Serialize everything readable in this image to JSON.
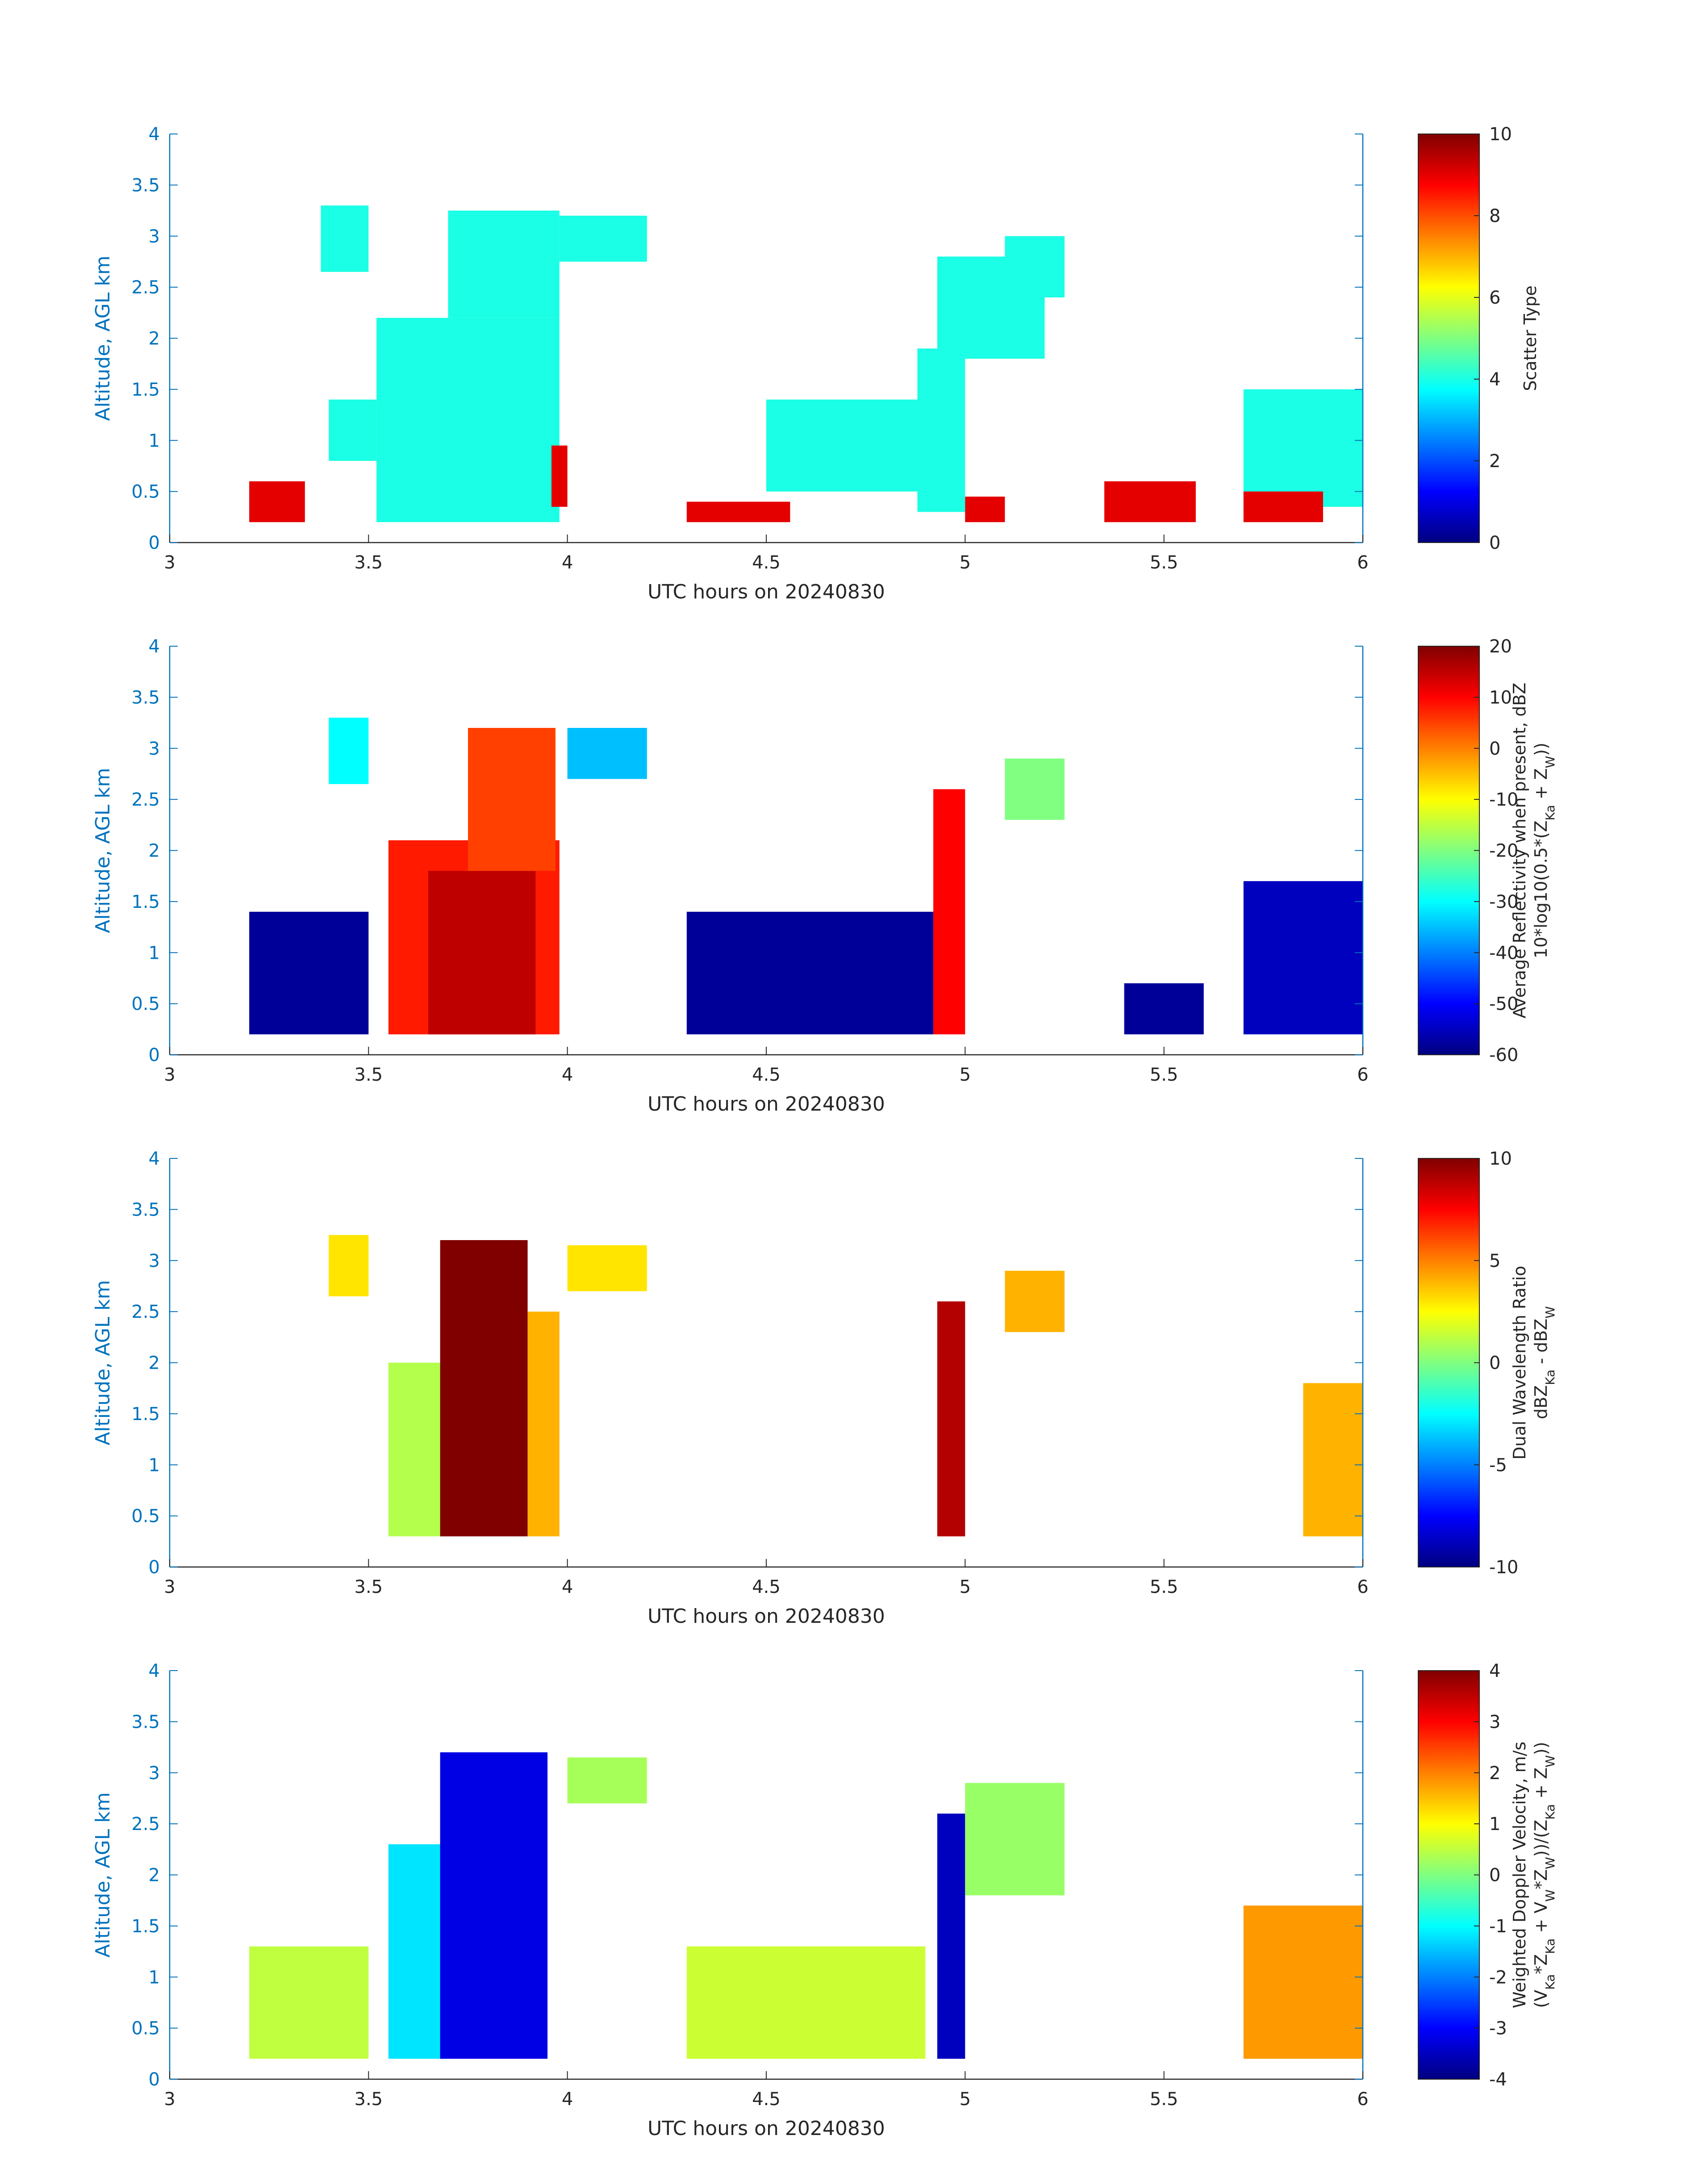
{
  "colors": {
    "axis": "#0072bd",
    "text": "#262626",
    "dots": "#000000"
  },
  "colormap": "jet",
  "chart_data": [
    {
      "type": "heatmap",
      "xlabel": "UTC hours on 20240830",
      "ylabel": "Altitude, AGL km",
      "xlim": [
        3,
        6
      ],
      "ylim": [
        0,
        4
      ],
      "xticks": [
        "3",
        "3.5",
        "4",
        "4.5",
        "5",
        "5.5",
        "6"
      ],
      "yticks": [
        "0",
        "0.5",
        "1",
        "1.5",
        "2",
        "2.5",
        "3",
        "3.5",
        "4"
      ],
      "colorbar": {
        "label_lines": [
          "Scatter Type"
        ],
        "min": 0,
        "max": 10,
        "ticks": [
          "0",
          "2",
          "4",
          "6",
          "8",
          "10"
        ]
      },
      "regions": [
        {
          "x": [
            3.38,
            3.5
          ],
          "y": [
            2.65,
            3.3
          ],
          "value": 4
        },
        {
          "x": [
            3.52,
            3.98
          ],
          "y": [
            0.2,
            2.2
          ],
          "value": 4
        },
        {
          "x": [
            3.7,
            3.98
          ],
          "y": [
            2.2,
            3.25
          ],
          "value": 4
        },
        {
          "x": [
            3.4,
            3.52
          ],
          "y": [
            0.8,
            1.4
          ],
          "value": 4
        },
        {
          "x": [
            3.98,
            4.2
          ],
          "y": [
            2.75,
            3.2
          ],
          "value": 4
        },
        {
          "x": [
            4.5,
            4.9
          ],
          "y": [
            0.5,
            1.4
          ],
          "value": 4
        },
        {
          "x": [
            4.88,
            5.0
          ],
          "y": [
            0.3,
            1.9
          ],
          "value": 4
        },
        {
          "x": [
            4.93,
            5.2
          ],
          "y": [
            1.8,
            2.8
          ],
          "value": 4
        },
        {
          "x": [
            5.1,
            5.25
          ],
          "y": [
            2.4,
            3.0
          ],
          "value": 4
        },
        {
          "x": [
            5.7,
            6.0
          ],
          "y": [
            0.35,
            1.5
          ],
          "value": 4
        },
        {
          "x": [
            3.2,
            3.34
          ],
          "y": [
            0.2,
            0.6
          ],
          "value": 9
        },
        {
          "x": [
            4.3,
            4.56
          ],
          "y": [
            0.2,
            0.4
          ],
          "value": 9
        },
        {
          "x": [
            5.0,
            5.1
          ],
          "y": [
            0.2,
            0.45
          ],
          "value": 9
        },
        {
          "x": [
            5.35,
            5.58
          ],
          "y": [
            0.2,
            0.6
          ],
          "value": 9
        },
        {
          "x": [
            5.7,
            5.9
          ],
          "y": [
            0.2,
            0.5
          ],
          "value": 9
        },
        {
          "x": [
            3.96,
            4.0
          ],
          "y": [
            0.35,
            0.95
          ],
          "value": 9
        }
      ]
    },
    {
      "type": "heatmap",
      "xlabel": "UTC hours on 20240830",
      "ylabel": "Altitude, AGL km",
      "xlim": [
        3,
        6
      ],
      "ylim": [
        0,
        4
      ],
      "xticks": [
        "3",
        "3.5",
        "4",
        "4.5",
        "5",
        "5.5",
        "6"
      ],
      "yticks": [
        "0",
        "0.5",
        "1",
        "1.5",
        "2",
        "2.5",
        "3",
        "3.5",
        "4"
      ],
      "colorbar": {
        "label_lines": [
          "Average Reflectivity when present, dBZ",
          "10*log10(0.5*(Z_Ka + Z_W))"
        ],
        "min": -60,
        "max": 20,
        "ticks": [
          "-60",
          "-50",
          "-40",
          "-30",
          "-20",
          "-10",
          "0",
          "10",
          "20"
        ]
      },
      "regions": [
        {
          "x": [
            3.2,
            3.5
          ],
          "y": [
            0.2,
            1.4
          ],
          "value": -58
        },
        {
          "x": [
            3.4,
            3.5
          ],
          "y": [
            2.65,
            3.3
          ],
          "value": -30
        },
        {
          "x": [
            3.55,
            3.98
          ],
          "y": [
            0.2,
            2.1
          ],
          "value": 8
        },
        {
          "x": [
            3.65,
            3.92
          ],
          "y": [
            0.2,
            1.8
          ],
          "value": 15
        },
        {
          "x": [
            3.75,
            3.97
          ],
          "y": [
            1.8,
            3.2
          ],
          "value": 5
        },
        {
          "x": [
            4.0,
            4.2
          ],
          "y": [
            2.7,
            3.2
          ],
          "value": -35
        },
        {
          "x": [
            4.3,
            4.92
          ],
          "y": [
            0.2,
            1.4
          ],
          "value": -58
        },
        {
          "x": [
            4.92,
            5.0
          ],
          "y": [
            0.2,
            2.6
          ],
          "value": 10
        },
        {
          "x": [
            5.1,
            5.25
          ],
          "y": [
            2.3,
            2.9
          ],
          "value": -20
        },
        {
          "x": [
            5.4,
            5.6
          ],
          "y": [
            0.2,
            0.7
          ],
          "value": -58
        },
        {
          "x": [
            5.7,
            6.0
          ],
          "y": [
            0.2,
            1.7
          ],
          "value": -55
        }
      ]
    },
    {
      "type": "heatmap",
      "xlabel": "UTC hours on 20240830",
      "ylabel": "Altitude, AGL km",
      "xlim": [
        3,
        6
      ],
      "ylim": [
        0,
        4
      ],
      "xticks": [
        "3",
        "3.5",
        "4",
        "4.5",
        "5",
        "5.5",
        "6"
      ],
      "yticks": [
        "0",
        "0.5",
        "1",
        "1.5",
        "2",
        "2.5",
        "3",
        "3.5",
        "4"
      ],
      "colorbar": {
        "label_lines": [
          "Dual Wavelength Ratio",
          "dBZ_Ka - dBZ_W"
        ],
        "min": -10,
        "max": 10,
        "ticks": [
          "-10",
          "-5",
          "0",
          "5",
          "10"
        ]
      },
      "regions": [
        {
          "x": [
            3.4,
            3.5
          ],
          "y": [
            2.65,
            3.25
          ],
          "value": 3
        },
        {
          "x": [
            3.55,
            3.7
          ],
          "y": [
            0.3,
            2.0
          ],
          "value": 1
        },
        {
          "x": [
            3.68,
            3.9
          ],
          "y": [
            0.3,
            3.2
          ],
          "value": 10
        },
        {
          "x": [
            3.9,
            3.98
          ],
          "y": [
            0.3,
            2.5
          ],
          "value": 4
        },
        {
          "x": [
            4.0,
            4.2
          ],
          "y": [
            2.7,
            3.15
          ],
          "value": 3
        },
        {
          "x": [
            4.93,
            5.0
          ],
          "y": [
            0.3,
            2.6
          ],
          "value": 9
        },
        {
          "x": [
            5.1,
            5.25
          ],
          "y": [
            2.3,
            2.9
          ],
          "value": 4
        },
        {
          "x": [
            5.85,
            6.0
          ],
          "y": [
            0.3,
            1.8
          ],
          "value": 4
        }
      ]
    },
    {
      "type": "heatmap",
      "xlabel": "UTC hours on 20240830",
      "ylabel": "Altitude, AGL km",
      "xlim": [
        3,
        6
      ],
      "ylim": [
        0,
        4
      ],
      "xticks": [
        "3",
        "3.5",
        "4",
        "4.5",
        "5",
        "5.5",
        "6"
      ],
      "yticks": [
        "0",
        "0.5",
        "1",
        "1.5",
        "2",
        "2.5",
        "3",
        "3.5",
        "4"
      ],
      "colorbar": {
        "label_lines": [
          "Weighted Doppler Velocity, m/s",
          "(V_Ka*Z_Ka + V_W*Z_W))/(Z_Ka + Z_W))"
        ],
        "min": -4,
        "max": 4,
        "ticks": [
          "-4",
          "-3",
          "-2",
          "-1",
          "0",
          "1",
          "2",
          "3",
          "4"
        ]
      },
      "regions": [
        {
          "x": [
            3.2,
            3.5
          ],
          "y": [
            0.2,
            1.3
          ],
          "value": 0.5
        },
        {
          "x": [
            3.55,
            3.7
          ],
          "y": [
            0.2,
            2.3
          ],
          "value": -1.2
        },
        {
          "x": [
            3.68,
            3.95
          ],
          "y": [
            0.2,
            3.2
          ],
          "value": -3.2
        },
        {
          "x": [
            4.0,
            4.2
          ],
          "y": [
            2.7,
            3.15
          ],
          "value": 0.3
        },
        {
          "x": [
            4.3,
            4.9
          ],
          "y": [
            0.2,
            1.3
          ],
          "value": 0.6
        },
        {
          "x": [
            4.93,
            5.0
          ],
          "y": [
            0.2,
            2.6
          ],
          "value": -3.5
        },
        {
          "x": [
            5.0,
            5.25
          ],
          "y": [
            1.8,
            2.9
          ],
          "value": 0.2
        },
        {
          "x": [
            5.7,
            6.0
          ],
          "y": [
            0.2,
            1.7
          ],
          "value": 1.8
        }
      ]
    }
  ]
}
